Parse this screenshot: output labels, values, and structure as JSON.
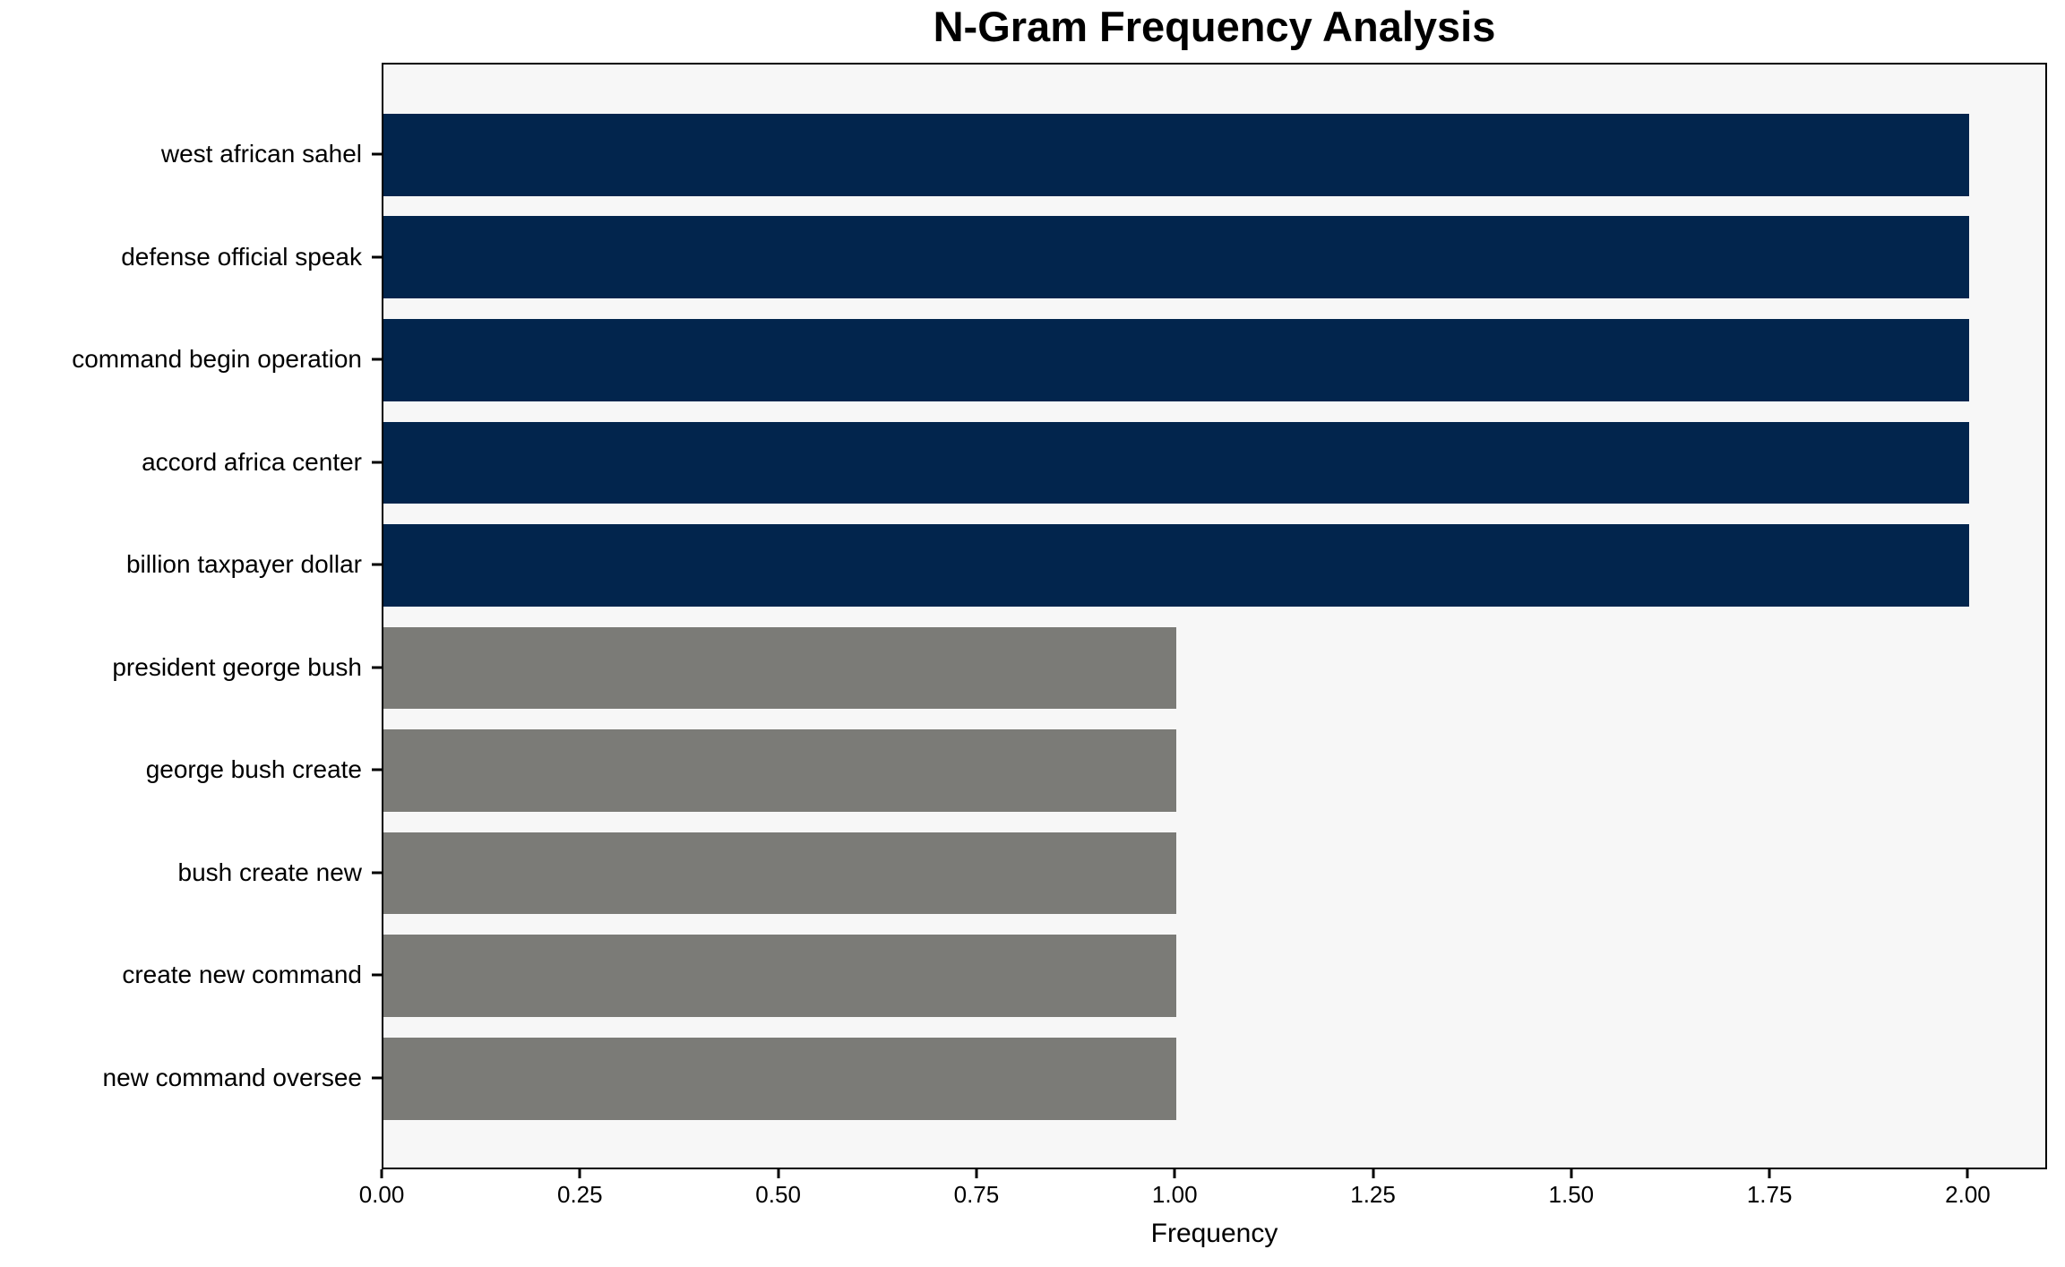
{
  "chart_data": {
    "type": "bar",
    "orientation": "horizontal",
    "title": "N-Gram Frequency Analysis",
    "xlabel": "Frequency",
    "ylabel": "",
    "categories": [
      "west african sahel",
      "defense official speak",
      "command begin operation",
      "accord africa center",
      "billion taxpayer dollar",
      "president george bush",
      "george bush create",
      "bush create new",
      "create new command",
      "new command oversee"
    ],
    "values": [
      2,
      2,
      2,
      2,
      2,
      1,
      1,
      1,
      1,
      1
    ],
    "bar_colors": [
      "#02254d",
      "#02254d",
      "#02254d",
      "#02254d",
      "#02254d",
      "#7b7b77",
      "#7b7b77",
      "#7b7b77",
      "#7b7b77",
      "#7b7b77"
    ],
    "xlim": [
      0,
      2.1
    ],
    "xticks": [
      0,
      0.25,
      0.5,
      0.75,
      1.0,
      1.25,
      1.5,
      1.75,
      2.0
    ],
    "xtick_labels": [
      "0.00",
      "0.25",
      "0.50",
      "0.75",
      "1.00",
      "1.25",
      "1.50",
      "1.75",
      "2.00"
    ],
    "grid": false,
    "legend": null,
    "plot_background": "#f7f7f7",
    "spine_color": "#000000",
    "colors": {
      "high_frequency_bar": "#02254d",
      "low_frequency_bar": "#7b7b77"
    }
  }
}
